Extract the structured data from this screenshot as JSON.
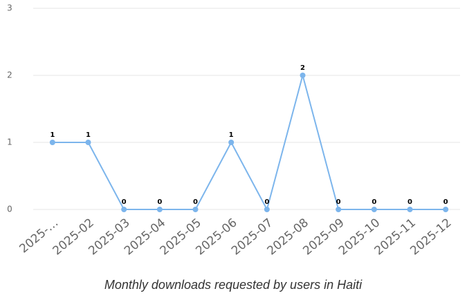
{
  "chart_data": {
    "type": "line",
    "title": "Monthly downloads requested by users in Haiti",
    "categories": [
      "2025-…",
      "2025-02",
      "2025-03",
      "2025-04",
      "2025-05",
      "2025-06",
      "2025-07",
      "2025-08",
      "2025-09",
      "2025-10",
      "2025-11",
      "2025-12"
    ],
    "series": [
      {
        "color": "#7cb5ec",
        "values": [
          1,
          1,
          0,
          0,
          0,
          1,
          0,
          2,
          0,
          0,
          0,
          0
        ]
      }
    ],
    "ylim": [
      0,
      3
    ],
    "yticks": [
      0,
      1,
      2,
      3
    ],
    "grid": true
  }
}
